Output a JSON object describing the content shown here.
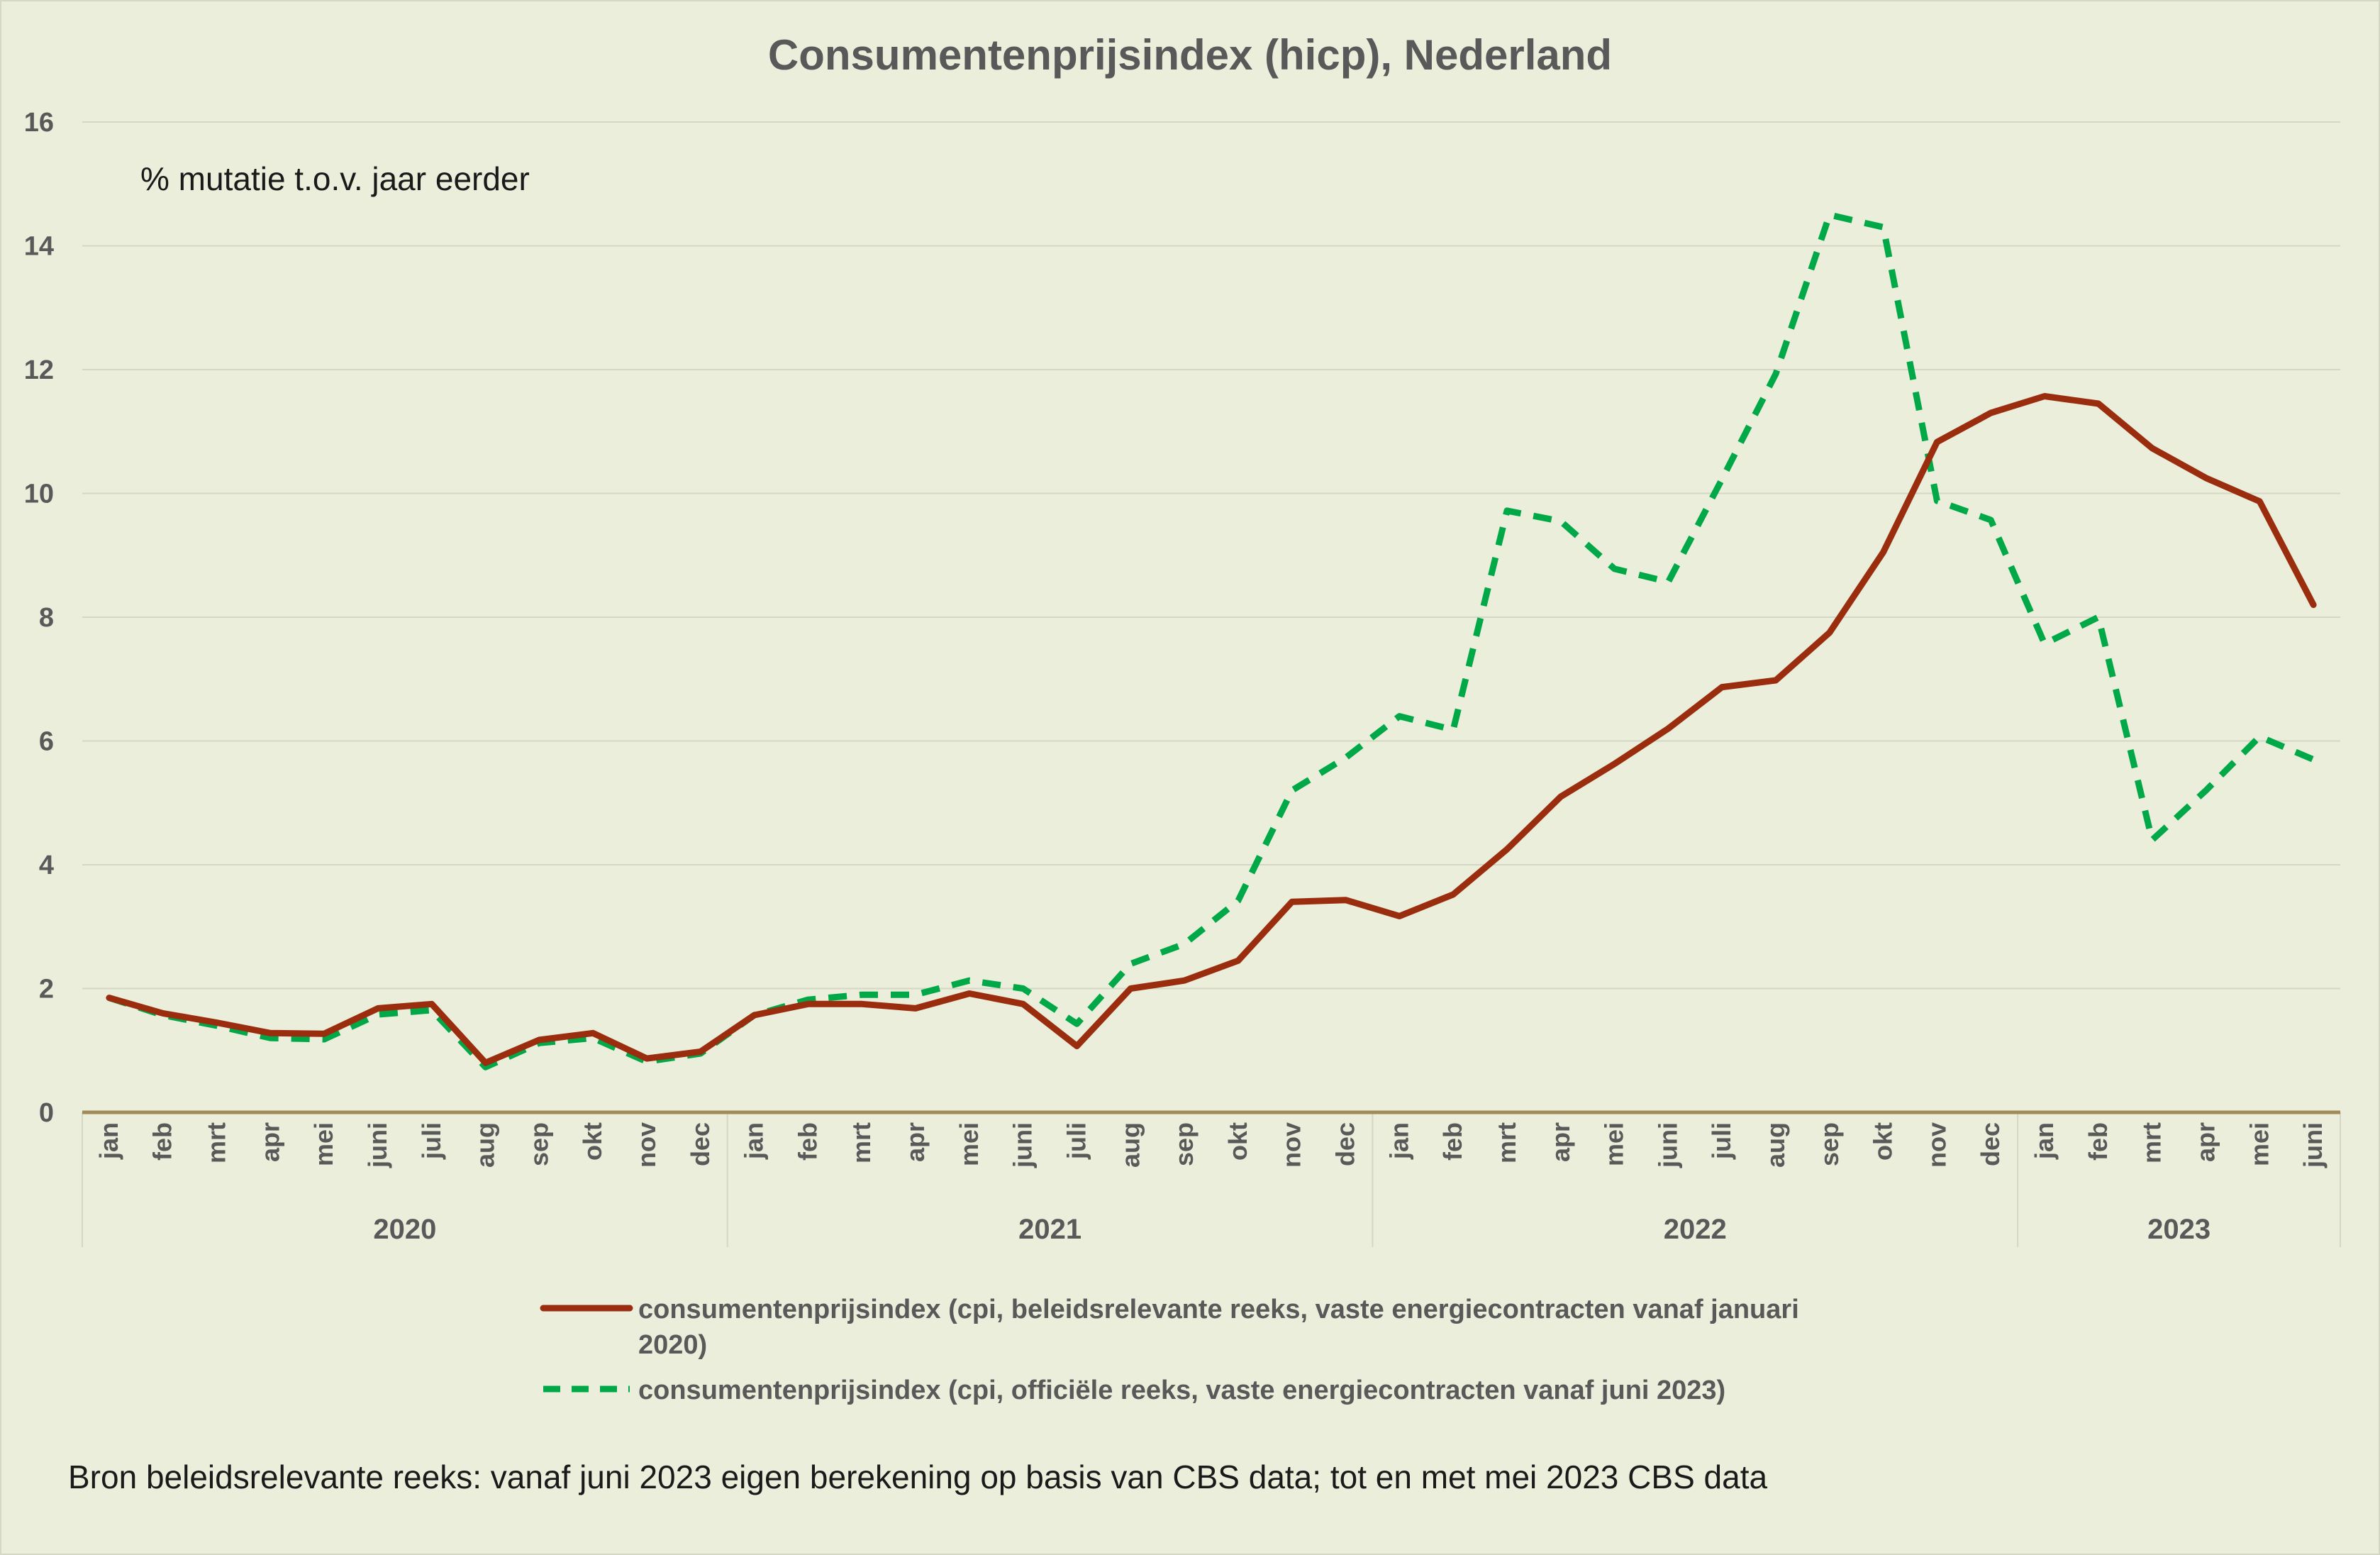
{
  "chart_data": {
    "type": "line",
    "title": "Consumentenprijsindex (hicp), Nederland",
    "subtitle": "% mutatie t.o.v. jaar eerder",
    "ylim": [
      0,
      16
    ],
    "yticks": [
      0,
      2,
      4,
      6,
      8,
      10,
      12,
      14,
      16
    ],
    "grid": true,
    "legend_position": "bottom",
    "months": [
      "jan",
      "feb",
      "mrt",
      "apr",
      "mei",
      "juni",
      "juli",
      "aug",
      "sep",
      "okt",
      "nov",
      "dec",
      "jan",
      "feb",
      "mrt",
      "apr",
      "mei",
      "juni",
      "juli",
      "aug",
      "sep",
      "okt",
      "nov",
      "dec",
      "jan",
      "feb",
      "mrt",
      "apr",
      "mei",
      "juni",
      "juli",
      "aug",
      "sep",
      "okt",
      "nov",
      "dec",
      "jan",
      "feb",
      "mrt",
      "apr",
      "mei",
      "juni"
    ],
    "years": [
      {
        "label": "2020",
        "count": 12
      },
      {
        "label": "2021",
        "count": 12
      },
      {
        "label": "2022",
        "count": 12
      },
      {
        "label": "2023",
        "count": 6
      }
    ],
    "series": [
      {
        "name": "consumentenprijsindex (cpi, beleidsrelevante reeks, vaste energiecontracten vanaf januari 2020)",
        "color": "#9b2d0f",
        "dash": false,
        "values": [
          1.85,
          1.6,
          1.45,
          1.28,
          1.27,
          1.68,
          1.75,
          0.8,
          1.17,
          1.28,
          0.87,
          0.98,
          1.57,
          1.75,
          1.75,
          1.68,
          1.92,
          1.75,
          1.07,
          2.0,
          2.13,
          2.45,
          3.4,
          3.43,
          3.17,
          3.52,
          4.25,
          5.1,
          5.63,
          6.2,
          6.87,
          6.98,
          7.75,
          9.05,
          10.83,
          11.3,
          11.57,
          11.45,
          10.73,
          10.25,
          9.87,
          8.2
        ]
      },
      {
        "name": "consumentenprijsindex (cpi, officiële reeks, vaste energiecontracten vanaf juni 2023)",
        "color": "#00a847",
        "dash": true,
        "values": [
          1.85,
          1.57,
          1.4,
          1.2,
          1.18,
          1.58,
          1.65,
          0.73,
          1.12,
          1.2,
          0.82,
          0.95,
          1.57,
          1.82,
          1.9,
          1.9,
          2.13,
          2.0,
          1.43,
          2.4,
          2.72,
          3.42,
          5.2,
          5.73,
          6.4,
          6.18,
          9.72,
          9.55,
          8.78,
          8.57,
          10.23,
          11.93,
          14.5,
          14.3,
          9.88,
          9.57,
          7.57,
          8.0,
          4.4,
          5.2,
          6.07,
          5.7
        ]
      }
    ]
  },
  "source_note": "Bron beleidsrelevante reeks: vanaf juni 2023 eigen berekening op basis van CBS data; tot en met mei 2023 CBS data",
  "colors": {
    "background": "#ebeedb",
    "grid": "#d4d7c6",
    "zero_line": "#a08a5a",
    "text": "#595959"
  }
}
